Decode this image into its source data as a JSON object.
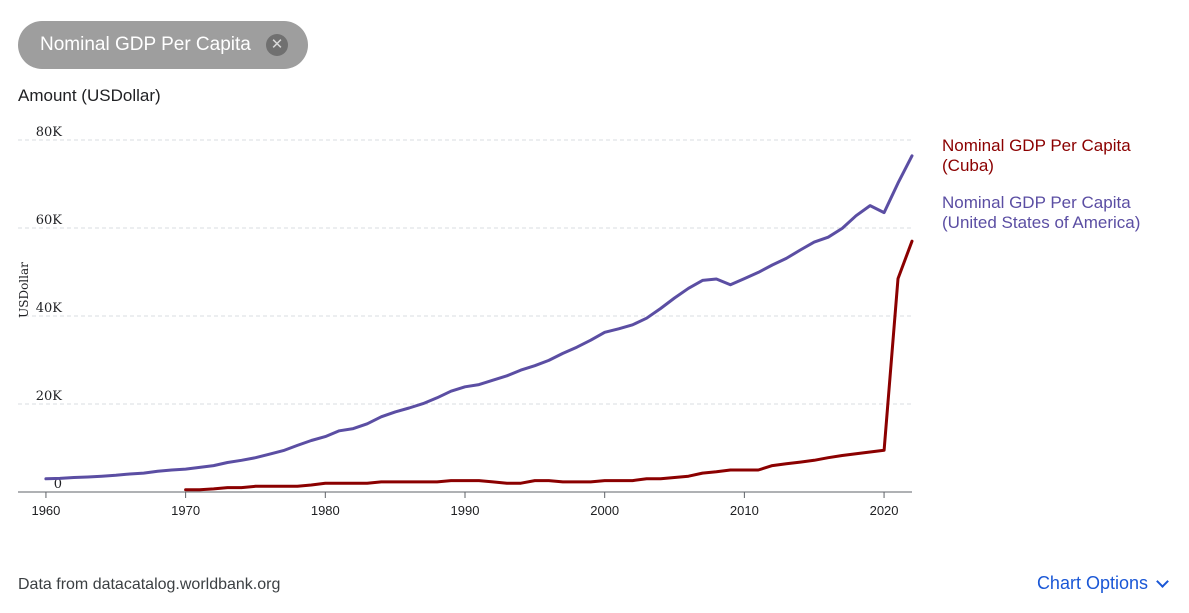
{
  "filter_chip": {
    "label": "Nominal GDP Per Capita",
    "close_icon": "close-icon"
  },
  "footer": {
    "source": "Data from datacatalog.worldbank.org",
    "options_label": "Chart Options",
    "options_icon": "chevron-down-icon"
  },
  "colors": {
    "cuba": "#8b0000",
    "usa": "#5b4ea3",
    "grid": "#dadce0",
    "axis": "#5f6368",
    "link": "#1a57d6"
  },
  "chart_data": {
    "type": "line",
    "title": "",
    "ylabel_top": "Amount (USDollar)",
    "ylabel": "USDollar",
    "xlabel": "",
    "xlim": [
      1958,
      2022
    ],
    "ylim": [
      0,
      80000
    ],
    "x_ticks": [
      1960,
      1970,
      1980,
      1990,
      2000,
      2010,
      2020
    ],
    "y_ticks": [
      0,
      20000,
      40000,
      60000,
      80000
    ],
    "y_tick_labels": [
      "0",
      "20K",
      "40K",
      "60K",
      "80K"
    ],
    "grid": true,
    "legend_position": "right",
    "series": [
      {
        "name": "Nominal GDP Per Capita (Cuba)",
        "name_lines": [
          "Nominal GDP Per Capita",
          "(Cuba)"
        ],
        "color": "#8b0000",
        "x": [
          1970,
          1971,
          1972,
          1973,
          1974,
          1975,
          1976,
          1977,
          1978,
          1979,
          1980,
          1981,
          1982,
          1983,
          1984,
          1985,
          1986,
          1987,
          1988,
          1989,
          1990,
          1991,
          1992,
          1993,
          1994,
          1995,
          1996,
          1997,
          1998,
          1999,
          2000,
          2001,
          2002,
          2003,
          2004,
          2005,
          2006,
          2007,
          2008,
          2009,
          2010,
          2011,
          2012,
          2013,
          2014,
          2015,
          2016,
          2017,
          2018,
          2019,
          2020,
          2021,
          2022
        ],
        "y": [
          500,
          500,
          700,
          1000,
          1000,
          1300,
          1300,
          1300,
          1300,
          1600,
          2000,
          2000,
          2000,
          2000,
          2300,
          2300,
          2300,
          2300,
          2300,
          2600,
          2600,
          2600,
          2300,
          2000,
          2000,
          2600,
          2600,
          2300,
          2300,
          2300,
          2600,
          2600,
          2600,
          3000,
          3000,
          3300,
          3600,
          4300,
          4600,
          5000,
          5000,
          5000,
          6000,
          6400,
          6800,
          7200,
          7800,
          8300,
          8700,
          9100,
          9500,
          48500,
          57000
        ]
      },
      {
        "name": "Nominal GDP Per Capita (United States of America)",
        "name_lines": [
          "Nominal GDP Per Capita",
          "(United States of America)"
        ],
        "color": "#5b4ea3",
        "x": [
          1960,
          1961,
          1962,
          1963,
          1964,
          1965,
          1966,
          1967,
          1968,
          1969,
          1970,
          1971,
          1972,
          1973,
          1974,
          1975,
          1976,
          1977,
          1978,
          1979,
          1980,
          1981,
          1982,
          1983,
          1984,
          1985,
          1986,
          1987,
          1988,
          1989,
          1990,
          1991,
          1992,
          1993,
          1994,
          1995,
          1996,
          1997,
          1998,
          1999,
          2000,
          2001,
          2002,
          2003,
          2004,
          2005,
          2006,
          2007,
          2008,
          2009,
          2010,
          2011,
          2012,
          2013,
          2014,
          2015,
          2016,
          2017,
          2018,
          2019,
          2020,
          2021,
          2022
        ],
        "y": [
          3000,
          3100,
          3300,
          3400,
          3600,
          3800,
          4100,
          4300,
          4700,
          5000,
          5200,
          5600,
          6000,
          6700,
          7200,
          7800,
          8600,
          9400,
          10600,
          11700,
          12600,
          13900,
          14400,
          15500,
          17100,
          18200,
          19100,
          20100,
          21400,
          22900,
          23900,
          24400,
          25400,
          26400,
          27700,
          28700,
          29900,
          31500,
          32900,
          34500,
          36300,
          37100,
          38000,
          39500,
          41700,
          44100,
          46300,
          48100,
          48400,
          47100,
          48500,
          49900,
          51600,
          53100,
          55000,
          56800,
          57900,
          59900,
          62800,
          65100,
          63500,
          70200,
          76400
        ]
      }
    ]
  }
}
